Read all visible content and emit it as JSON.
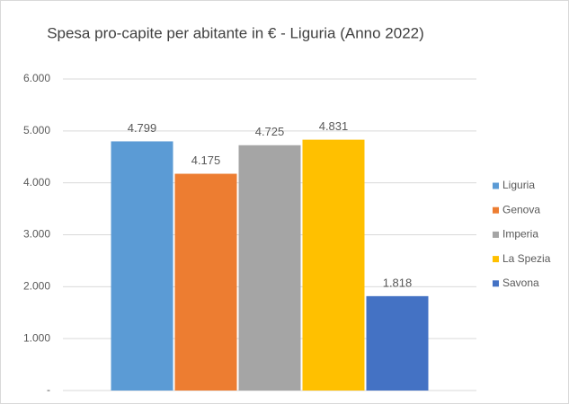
{
  "chart_data": {
    "type": "bar",
    "title": "Spesa pro-capite per abitante in € - Liguria (Anno 2022)",
    "categories": [
      null
    ],
    "series": [
      {
        "name": "Liguria",
        "color": "#5b9bd5",
        "values": [
          4799
        ],
        "value_labels": [
          "4.799"
        ]
      },
      {
        "name": "Genova",
        "color": "#ed7d31",
        "values": [
          4175
        ],
        "value_labels": [
          "4.175"
        ]
      },
      {
        "name": "Imperia",
        "color": "#a5a5a5",
        "values": [
          4725
        ],
        "value_labels": [
          "4.725"
        ]
      },
      {
        "name": "La Spezia",
        "color": "#ffc000",
        "values": [
          4831
        ],
        "value_labels": [
          "4.831"
        ]
      },
      {
        "name": "Savona",
        "color": "#4472c4",
        "values": [
          1818
        ],
        "value_labels": [
          "1.818"
        ]
      }
    ],
    "ylim": [
      0,
      6000
    ],
    "yticks": [
      {
        "value": 0,
        "label": "-"
      },
      {
        "value": 1000,
        "label": "1.000"
      },
      {
        "value": 2000,
        "label": "2.000"
      },
      {
        "value": 3000,
        "label": "3.000"
      },
      {
        "value": 4000,
        "label": "4.000"
      },
      {
        "value": 5000,
        "label": "5.000"
      },
      {
        "value": 6000,
        "label": "6.000"
      }
    ],
    "grid": true,
    "legend": "right"
  }
}
